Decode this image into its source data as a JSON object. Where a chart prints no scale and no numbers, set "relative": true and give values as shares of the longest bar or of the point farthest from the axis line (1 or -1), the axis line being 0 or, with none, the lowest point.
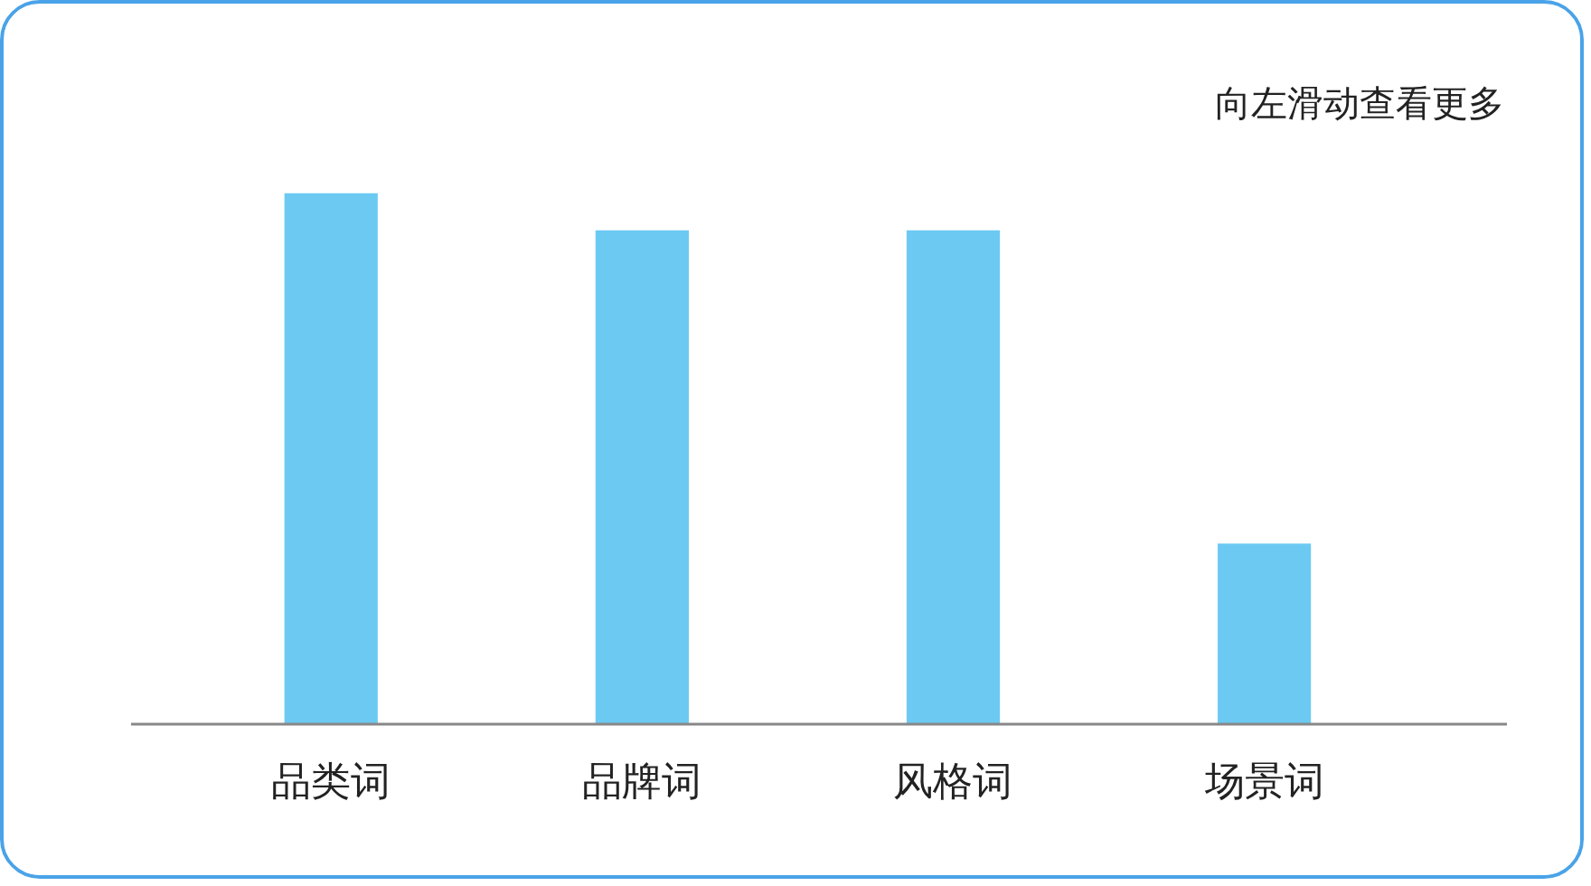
{
  "chart_data": {
    "type": "bar",
    "relative": true,
    "color": "#6ccaf2",
    "categories": [
      "品类词",
      "品牌词",
      "风格词",
      "场景词"
    ],
    "values": [
      1,
      0.93,
      0.93,
      0.34
    ],
    "annotations": [
      "向左滑动查看更多"
    ]
  }
}
